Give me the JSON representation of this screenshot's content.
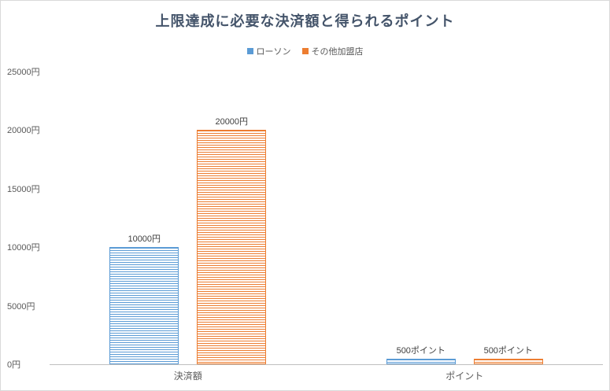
{
  "chart_data": {
    "type": "bar",
    "title": "上限達成に必要な決済額と得られるポイント",
    "categories": [
      "決済額",
      "ポイント"
    ],
    "series": [
      {
        "name": "ローソン",
        "color": "#5B9BD5",
        "values": [
          10000,
          500
        ],
        "value_labels": [
          "10000円",
          "500ポイント"
        ]
      },
      {
        "name": "その他加盟店",
        "color": "#ED7D31",
        "values": [
          20000,
          500
        ],
        "value_labels": [
          "20000円",
          "500ポイント"
        ]
      }
    ],
    "y_ticks": [
      "0円",
      "5000円",
      "10000円",
      "15000円",
      "20000円",
      "25000円"
    ],
    "ylim": [
      0,
      25000
    ],
    "legend_position": "top",
    "grid": false
  }
}
